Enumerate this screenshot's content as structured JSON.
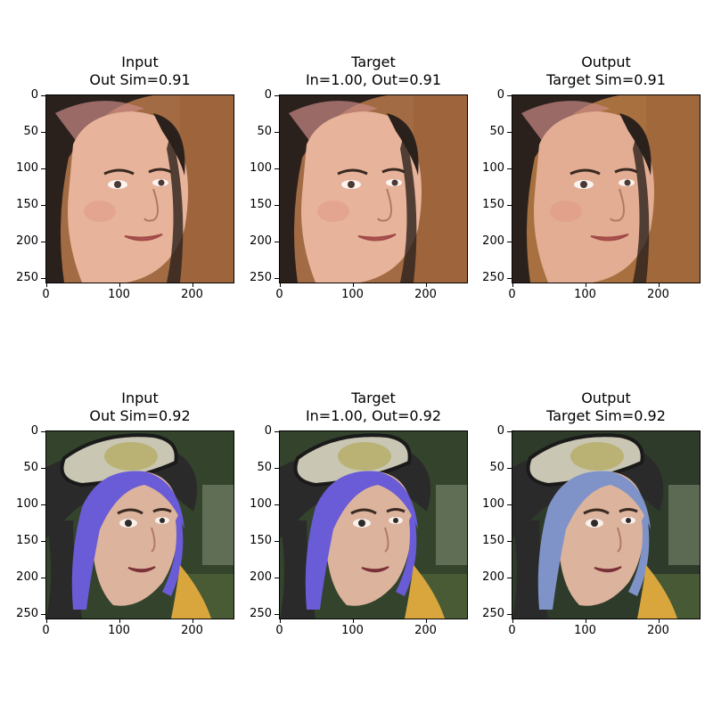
{
  "panels": [
    {
      "title": "Input",
      "subtitle": "Out Sim=0.91",
      "face": "face-a",
      "variant": "input"
    },
    {
      "title": "Target",
      "subtitle": "In=1.00, Out=0.91",
      "face": "face-a",
      "variant": "target"
    },
    {
      "title": "Output",
      "subtitle": "Target Sim=0.91",
      "face": "face-a",
      "variant": "output"
    },
    {
      "title": "Input",
      "subtitle": "Out Sim=0.92",
      "face": "face-b",
      "variant": "input"
    },
    {
      "title": "Target",
      "subtitle": "In=1.00, Out=0.92",
      "face": "face-b",
      "variant": "target"
    },
    {
      "title": "Output",
      "subtitle": "Target Sim=0.92",
      "face": "face-b",
      "variant": "output"
    }
  ],
  "axis": {
    "yticks": [
      "0",
      "50",
      "100",
      "150",
      "200",
      "250"
    ],
    "xticks": [
      "0",
      "100",
      "200"
    ]
  },
  "colors": {
    "bg_a": "#a36b43",
    "hair_a": "#2b211c",
    "skin_a": "#e7b39a",
    "bg_b": "#34432c",
    "hair_b": "#6a5bd6",
    "hair_b_output": "#7f93c9",
    "skin_b": "#dcb39c",
    "helmet": "#2a2a2a",
    "goggles": "#c9c6b3"
  }
}
